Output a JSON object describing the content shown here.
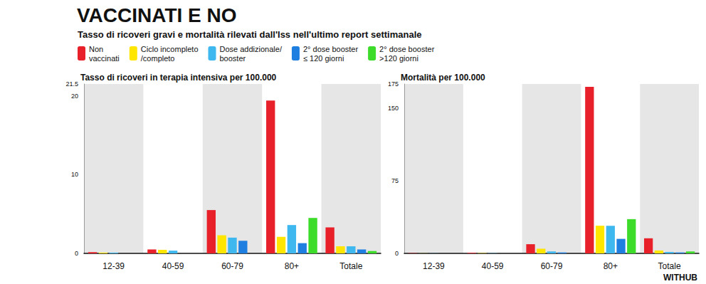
{
  "title": "VACCINATI E NO",
  "subtitle": "Tasso di ricoveri gravi e mortalità rilevati dall'Iss nell'ultimo report settimanale",
  "credit": "WITHUB",
  "chart_data": [
    {
      "type": "bar",
      "title": "Tasso di ricoveri in terapia intensiva per 100.000",
      "categories": [
        "12-39",
        "40-59",
        "60-79",
        "80+",
        "Totale"
      ],
      "series": [
        {
          "name": "Non\nvaccinati",
          "color": "#e8202a",
          "values": [
            0.15,
            0.5,
            5.5,
            19.4,
            3.3
          ]
        },
        {
          "name": "Ciclo incompleto\n/completo",
          "color": "#ffe600",
          "values": [
            0.1,
            0.45,
            2.3,
            2.1,
            0.9
          ]
        },
        {
          "name": "Dose addizionale/\nbooster",
          "color": "#3fb8ef",
          "values": [
            0.1,
            0.35,
            2.0,
            3.6,
            0.9
          ]
        },
        {
          "name": "2° dose booster\n≤ 120 giorni",
          "color": "#1e7fe0",
          "values": [
            0,
            0,
            1.6,
            1.3,
            0.5
          ]
        },
        {
          "name": "2° dose booster\n>120 giorni",
          "color": "#3ddc2a",
          "values": [
            0,
            0,
            0,
            4.5,
            0.3
          ]
        }
      ],
      "ylim": [
        0,
        21.5
      ],
      "yticks": [
        0,
        10,
        20
      ],
      "grid": false,
      "legend": "top"
    },
    {
      "type": "bar",
      "title": "Mortalità per 100.000",
      "categories": [
        "12-39",
        "40-59",
        "60-79",
        "80+",
        "Totale"
      ],
      "series": [
        {
          "name": "Non\nvaccinati",
          "color": "#e8202a",
          "values": [
            0.3,
            0.6,
            9.5,
            172,
            15.6
          ]
        },
        {
          "name": "Ciclo incompleto\n/completo",
          "color": "#ffe600",
          "values": [
            0.1,
            0.3,
            4.8,
            28.6,
            3
          ]
        },
        {
          "name": "Dose addizionale/\nbooster",
          "color": "#3fb8ef",
          "values": [
            0.1,
            0.2,
            2,
            28.5,
            1.5
          ]
        },
        {
          "name": "2° dose booster\n≤ 120 giorni",
          "color": "#1e7fe0",
          "values": [
            0,
            0,
            1,
            15,
            1
          ]
        },
        {
          "name": "2° dose booster\n>120 giorni",
          "color": "#3ddc2a",
          "values": [
            0,
            0,
            0,
            35.4,
            2
          ]
        }
      ],
      "ylim": [
        0,
        175
      ],
      "yticks": [
        0,
        75,
        150
      ],
      "grid": false
    }
  ]
}
